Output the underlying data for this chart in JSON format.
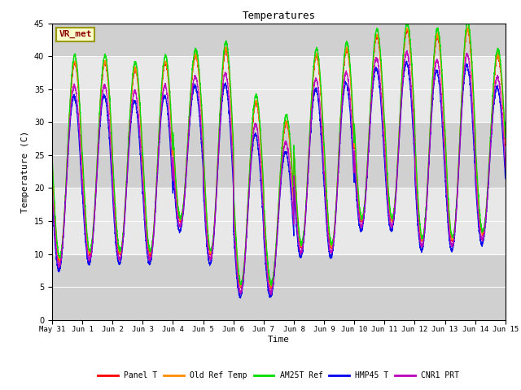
{
  "title": "Temperatures",
  "xlabel": "Time",
  "ylabel": "Temperature (C)",
  "ylim": [
    0,
    45
  ],
  "yticks": [
    0,
    5,
    10,
    15,
    20,
    25,
    30,
    35,
    40,
    45
  ],
  "annotation_text": "VR_met",
  "annotation_color": "#8B0000",
  "annotation_bg": "#FFFFCC",
  "annotation_border": "#999900",
  "lines": [
    {
      "label": "Panel T",
      "color": "#FF0000"
    },
    {
      "label": "Old Ref Temp",
      "color": "#FF8C00"
    },
    {
      "label": "AM25T Ref",
      "color": "#00DD00"
    },
    {
      "label": "HMP45 T",
      "color": "#0000EE"
    },
    {
      "label": "CNR1 PRT",
      "color": "#BB00BB"
    }
  ],
  "plot_bg": "#E8E8E8",
  "n_days": 15,
  "samples_per_day": 288,
  "font_family": "monospace"
}
